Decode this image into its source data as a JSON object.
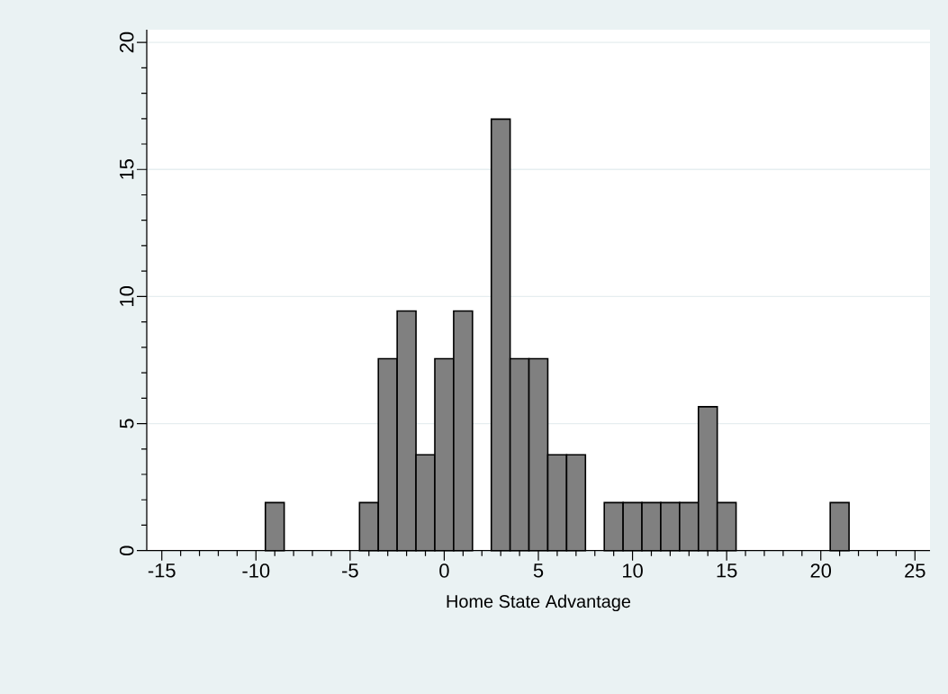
{
  "chart_data": {
    "type": "histogram",
    "xlabel": "Home State Advantage",
    "bins": [
      -9.5,
      -8.5,
      -7.5,
      -6.5,
      -5.5,
      -4.5,
      -3.5,
      -2.5,
      -1.5,
      -0.5,
      0.5,
      1.5,
      2.5,
      3.5,
      4.5,
      5.5,
      6.5,
      7.5,
      8.5,
      9.5,
      10.5,
      11.5,
      12.5,
      13.5,
      14.5,
      15.5,
      16.5,
      17.5,
      18.5,
      19.5,
      20.5,
      21.5
    ],
    "values": [
      1.89,
      0,
      0,
      0,
      0,
      1.89,
      7.55,
      9.43,
      3.77,
      7.55,
      9.43,
      0,
      16.98,
      7.55,
      7.55,
      3.77,
      3.77,
      0,
      1.89,
      1.89,
      1.89,
      1.89,
      1.89,
      5.66,
      1.89,
      0,
      0,
      0,
      0,
      0,
      1.89
    ],
    "color": "#808080",
    "xlim": [
      -15.8,
      25.8
    ],
    "ylim": [
      0,
      20.5
    ],
    "xticks": [
      -15,
      -10,
      -5,
      0,
      5,
      10,
      15,
      20,
      25
    ],
    "yticks": [
      0,
      5,
      10,
      15,
      20
    ],
    "grid": "y"
  }
}
